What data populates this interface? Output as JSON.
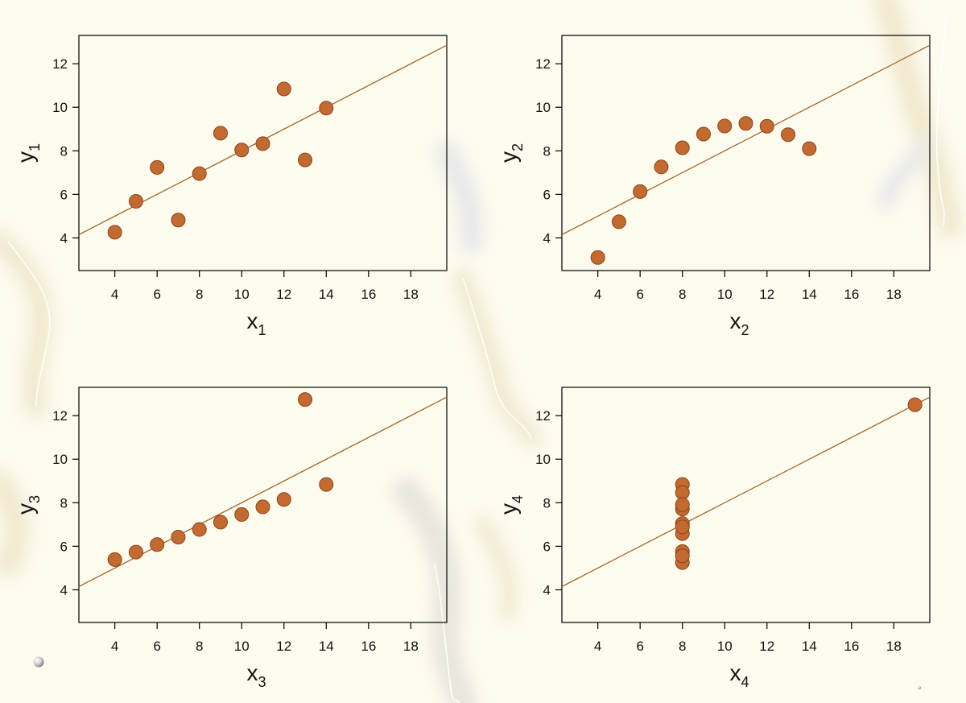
{
  "chart_data": [
    {
      "type": "scatter",
      "title": "",
      "xlabel": "x",
      "xlabel_sub": "1",
      "ylabel": "y",
      "ylabel_sub": "1",
      "xticks": [
        4,
        6,
        8,
        10,
        12,
        14,
        16,
        18
      ],
      "yticks": [
        4,
        6,
        8,
        10,
        12
      ],
      "xlim": [
        2.3,
        19.7
      ],
      "ylim": [
        2.5,
        13.3
      ],
      "x": [
        10,
        8,
        13,
        9,
        11,
        14,
        6,
        4,
        12,
        7,
        5
      ],
      "y": [
        8.04,
        6.95,
        7.58,
        8.81,
        8.33,
        9.96,
        7.24,
        4.26,
        10.84,
        4.82,
        5.68
      ],
      "fit": {
        "intercept": 3.0,
        "slope": 0.5
      },
      "grid": false
    },
    {
      "type": "scatter",
      "title": "",
      "xlabel": "x",
      "xlabel_sub": "2",
      "ylabel": "y",
      "ylabel_sub": "2",
      "xticks": [
        4,
        6,
        8,
        10,
        12,
        14,
        16,
        18
      ],
      "yticks": [
        4,
        6,
        8,
        10,
        12
      ],
      "xlim": [
        2.3,
        19.7
      ],
      "ylim": [
        2.5,
        13.3
      ],
      "x": [
        10,
        8,
        13,
        9,
        11,
        14,
        6,
        4,
        12,
        7,
        5
      ],
      "y": [
        9.14,
        8.14,
        8.74,
        8.77,
        9.26,
        8.1,
        6.13,
        3.1,
        9.13,
        7.26,
        4.74
      ],
      "fit": {
        "intercept": 3.0,
        "slope": 0.5
      },
      "grid": false
    },
    {
      "type": "scatter",
      "title": "",
      "xlabel": "x",
      "xlabel_sub": "3",
      "ylabel": "y",
      "ylabel_sub": "3",
      "xticks": [
        4,
        6,
        8,
        10,
        12,
        14,
        16,
        18
      ],
      "yticks": [
        4,
        6,
        8,
        10,
        12
      ],
      "xlim": [
        2.3,
        19.7
      ],
      "ylim": [
        2.5,
        13.3
      ],
      "x": [
        10,
        8,
        13,
        9,
        11,
        14,
        6,
        4,
        12,
        7,
        5
      ],
      "y": [
        7.46,
        6.77,
        12.74,
        7.11,
        7.81,
        8.84,
        6.08,
        5.39,
        8.15,
        6.42,
        5.73
      ],
      "fit": {
        "intercept": 3.0,
        "slope": 0.5
      },
      "grid": false
    },
    {
      "type": "scatter",
      "title": "",
      "xlabel": "x",
      "xlabel_sub": "4",
      "ylabel": "y",
      "ylabel_sub": "4",
      "xticks": [
        4,
        6,
        8,
        10,
        12,
        14,
        16,
        18
      ],
      "yticks": [
        4,
        6,
        8,
        10,
        12
      ],
      "xlim": [
        2.3,
        19.7
      ],
      "ylim": [
        2.5,
        13.3
      ],
      "x": [
        8,
        8,
        8,
        8,
        8,
        8,
        8,
        19,
        8,
        8,
        8
      ],
      "y": [
        6.58,
        5.76,
        7.71,
        8.84,
        8.47,
        7.04,
        5.25,
        12.5,
        5.56,
        7.91,
        6.89
      ],
      "fit": {
        "intercept": 3.0,
        "slope": 0.5
      },
      "grid": false
    }
  ],
  "colors": {
    "point_fill": "#c36a32",
    "point_stroke": "#8a4418",
    "fit_line": "#a0672a",
    "axis": "#000000",
    "background": "#fdfaee"
  }
}
